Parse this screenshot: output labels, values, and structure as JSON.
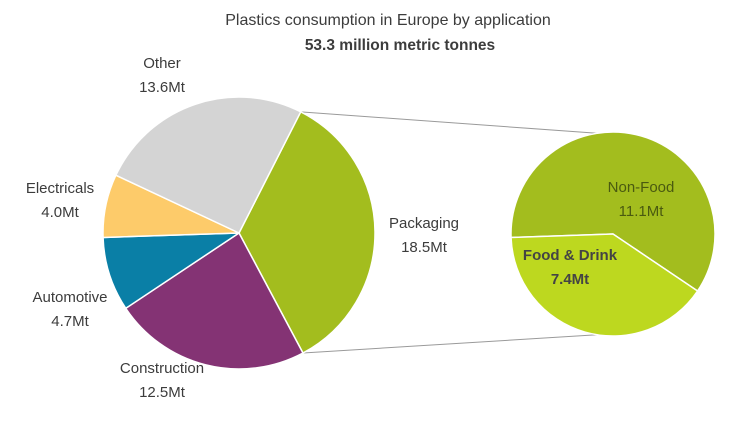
{
  "chart_data": {
    "type": "pie",
    "title": "Plastics consumption in Europe by application",
    "subtitle": "53.3 million metric tonnes",
    "unit": "Mt",
    "slices": [
      {
        "label": "Packaging",
        "value": 18.5,
        "value_label": "18.5Mt",
        "color": "#a3bd1e"
      },
      {
        "label": "Construction",
        "value": 12.5,
        "value_label": "12.5Mt",
        "color": "#843374"
      },
      {
        "label": "Automotive",
        "value": 4.7,
        "value_label": "4.7Mt",
        "color": "#0a7fa6"
      },
      {
        "label": "Electricals",
        "value": 4.0,
        "value_label": "4.0Mt",
        "color": "#fdcb6a"
      },
      {
        "label": "Other",
        "value": 13.6,
        "value_label": "13.6Mt",
        "color": "#d4d4d4"
      }
    ],
    "breakdown": {
      "parent": "Packaging",
      "slices": [
        {
          "label": "Non-Food",
          "value": 11.1,
          "value_label": "11.1Mt",
          "color": "#a3bd1e"
        },
        {
          "label": "Food & Drink",
          "value": 7.4,
          "value_label": "7.4Mt",
          "color": "#bdd81f"
        }
      ]
    },
    "connector_color": "#9a9a9a",
    "label_color": "#3c3c3c"
  }
}
